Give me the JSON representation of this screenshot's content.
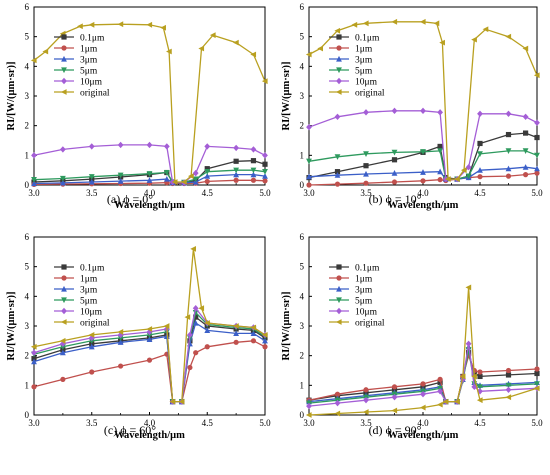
{
  "chart_data": [
    {
      "type": "line",
      "caption": "(a)  ϕ = 0°",
      "xlabel": "Wavelength/μm",
      "ylabel": "RI/[W/(μm·sr)]",
      "xlim": [
        3.0,
        5.0
      ],
      "ylim": [
        0,
        6
      ],
      "xticks": [
        "3.0",
        "3.5",
        "4.0",
        "4.5",
        "5.0"
      ],
      "yticks": [
        "0",
        "1",
        "2",
        "3",
        "4",
        "5",
        "6"
      ],
      "legend": "top-left",
      "series": [
        {
          "name": "0.1μm",
          "x": [
            3.0,
            3.25,
            3.5,
            3.75,
            4.0,
            4.15,
            4.2,
            4.3,
            4.4,
            4.5,
            4.75,
            4.9,
            5.0
          ],
          "y": [
            0.1,
            0.14,
            0.2,
            0.27,
            0.35,
            0.42,
            0.1,
            0.08,
            0.15,
            0.55,
            0.8,
            0.82,
            0.7
          ]
        },
        {
          "name": "1μm",
          "x": [
            3.0,
            3.25,
            3.5,
            3.75,
            4.0,
            4.15,
            4.2,
            4.3,
            4.4,
            4.5,
            4.75,
            4.9,
            5.0
          ],
          "y": [
            0.02,
            0.03,
            0.04,
            0.05,
            0.06,
            0.08,
            0.05,
            0.05,
            0.06,
            0.12,
            0.16,
            0.16,
            0.14
          ]
        },
        {
          "name": "3μm",
          "x": [
            3.0,
            3.25,
            3.5,
            3.75,
            4.0,
            4.15,
            4.2,
            4.3,
            4.4,
            4.5,
            4.75,
            4.9,
            5.0
          ],
          "y": [
            0.05,
            0.07,
            0.1,
            0.13,
            0.16,
            0.2,
            0.08,
            0.07,
            0.1,
            0.3,
            0.35,
            0.35,
            0.3
          ]
        },
        {
          "name": "5μm",
          "x": [
            3.0,
            3.25,
            3.5,
            3.75,
            4.0,
            4.15,
            4.2,
            4.3,
            4.4,
            4.5,
            4.75,
            4.9,
            5.0
          ],
          "y": [
            0.18,
            0.22,
            0.28,
            0.33,
            0.38,
            0.42,
            0.1,
            0.09,
            0.2,
            0.45,
            0.5,
            0.5,
            0.45
          ]
        },
        {
          "name": "10μm",
          "x": [
            3.0,
            3.25,
            3.5,
            3.75,
            4.0,
            4.15,
            4.2,
            4.3,
            4.4,
            4.5,
            4.75,
            4.9,
            5.0
          ],
          "y": [
            1.0,
            1.2,
            1.3,
            1.35,
            1.35,
            1.3,
            0.1,
            0.08,
            0.4,
            1.3,
            1.25,
            1.2,
            1.0
          ]
        },
        {
          "name": "original",
          "x": [
            3.0,
            3.1,
            3.25,
            3.4,
            3.5,
            3.75,
            4.0,
            4.12,
            4.17,
            4.22,
            4.3,
            4.36,
            4.45,
            4.55,
            4.75,
            4.9,
            5.0
          ],
          "y": [
            4.2,
            4.5,
            5.1,
            5.35,
            5.4,
            5.42,
            5.4,
            5.3,
            4.5,
            0.1,
            0.1,
            0.3,
            4.6,
            5.05,
            4.8,
            4.4,
            3.5
          ]
        }
      ]
    },
    {
      "type": "line",
      "caption": "(b)  ϕ = 10°",
      "xlabel": "Wavelength/μm",
      "ylabel": "RI/[W/(μm·sr)]",
      "xlim": [
        3.0,
        5.0
      ],
      "ylim": [
        0,
        6
      ],
      "xticks": [
        "3.0",
        "3.5",
        "4.0",
        "4.5",
        "5.0"
      ],
      "yticks": [
        "0",
        "1",
        "2",
        "3",
        "4",
        "5",
        "6"
      ],
      "legend": "top-left",
      "series": [
        {
          "name": "0.1μm",
          "x": [
            3.0,
            3.25,
            3.5,
            3.75,
            4.0,
            4.15,
            4.2,
            4.3,
            4.4,
            4.5,
            4.75,
            4.9,
            5.0
          ],
          "y": [
            0.25,
            0.45,
            0.65,
            0.85,
            1.1,
            1.3,
            0.25,
            0.2,
            0.3,
            1.4,
            1.7,
            1.75,
            1.6
          ]
        },
        {
          "name": "1μm",
          "x": [
            3.0,
            3.25,
            3.5,
            3.75,
            4.0,
            4.15,
            4.2,
            4.3,
            4.4,
            4.5,
            4.75,
            4.9,
            5.0
          ],
          "y": [
            0.0,
            0.03,
            0.06,
            0.1,
            0.14,
            0.18,
            0.15,
            0.2,
            0.25,
            0.28,
            0.3,
            0.35,
            0.4
          ]
        },
        {
          "name": "3μm",
          "x": [
            3.0,
            3.25,
            3.5,
            3.75,
            4.0,
            4.15,
            4.2,
            4.3,
            4.4,
            4.5,
            4.75,
            4.9,
            5.0
          ],
          "y": [
            0.28,
            0.33,
            0.37,
            0.4,
            0.43,
            0.45,
            0.2,
            0.2,
            0.25,
            0.5,
            0.55,
            0.6,
            0.55
          ]
        },
        {
          "name": "5μm",
          "x": [
            3.0,
            3.25,
            3.5,
            3.75,
            4.0,
            4.15,
            4.2,
            4.3,
            4.4,
            4.5,
            4.75,
            4.9,
            5.0
          ],
          "y": [
            0.8,
            0.95,
            1.05,
            1.1,
            1.12,
            1.15,
            0.2,
            0.2,
            0.3,
            1.05,
            1.15,
            1.15,
            1.0
          ]
        },
        {
          "name": "10μm",
          "x": [
            3.0,
            3.25,
            3.5,
            3.75,
            4.0,
            4.15,
            4.2,
            4.3,
            4.4,
            4.5,
            4.75,
            4.9,
            5.0
          ],
          "y": [
            1.95,
            2.3,
            2.45,
            2.5,
            2.5,
            2.45,
            0.2,
            0.2,
            0.6,
            2.4,
            2.4,
            2.3,
            2.1
          ]
        },
        {
          "name": "original",
          "x": [
            3.0,
            3.1,
            3.25,
            3.4,
            3.5,
            3.75,
            4.0,
            4.12,
            4.17,
            4.22,
            4.3,
            4.36,
            4.45,
            4.55,
            4.75,
            4.9,
            5.0
          ],
          "y": [
            4.4,
            4.6,
            5.2,
            5.4,
            5.45,
            5.5,
            5.5,
            5.45,
            4.8,
            0.2,
            0.2,
            0.5,
            4.9,
            5.25,
            5.0,
            4.6,
            3.7
          ]
        }
      ]
    },
    {
      "type": "line",
      "caption": "(c)  ϕ = 60°",
      "xlabel": "Wavelength/μm",
      "ylabel": "RI/[W/(μm·sr)]",
      "xlim": [
        3.0,
        5.0
      ],
      "ylim": [
        0,
        6
      ],
      "xticks": [
        "3.0",
        "3.5",
        "4.0",
        "4.5",
        "5.0"
      ],
      "yticks": [
        "0",
        "1",
        "2",
        "3",
        "4",
        "5",
        "6"
      ],
      "legend": "top-left",
      "series": [
        {
          "name": "0.1μm",
          "x": [
            3.0,
            3.25,
            3.5,
            3.75,
            4.0,
            4.15,
            4.2,
            4.28,
            4.35,
            4.4,
            4.5,
            4.75,
            4.9,
            5.0
          ],
          "y": [
            1.9,
            2.2,
            2.4,
            2.5,
            2.6,
            2.7,
            0.45,
            0.45,
            2.5,
            3.3,
            3.0,
            2.9,
            2.85,
            2.6
          ]
        },
        {
          "name": "1μm",
          "x": [
            3.0,
            3.25,
            3.5,
            3.75,
            4.0,
            4.15,
            4.2,
            4.28,
            4.35,
            4.4,
            4.5,
            4.75,
            4.9,
            5.0
          ],
          "y": [
            0.95,
            1.2,
            1.45,
            1.65,
            1.85,
            2.05,
            0.45,
            0.45,
            1.6,
            2.1,
            2.3,
            2.45,
            2.5,
            2.3
          ]
        },
        {
          "name": "3μm",
          "x": [
            3.0,
            3.25,
            3.5,
            3.75,
            4.0,
            4.15,
            4.2,
            4.28,
            4.35,
            4.4,
            4.5,
            4.75,
            4.9,
            5.0
          ],
          "y": [
            1.8,
            2.1,
            2.3,
            2.45,
            2.55,
            2.65,
            0.45,
            0.45,
            2.4,
            3.1,
            2.85,
            2.75,
            2.75,
            2.5
          ]
        },
        {
          "name": "5μm",
          "x": [
            3.0,
            3.25,
            3.5,
            3.75,
            4.0,
            4.15,
            4.2,
            4.28,
            4.35,
            4.4,
            4.5,
            4.75,
            4.9,
            5.0
          ],
          "y": [
            2.05,
            2.3,
            2.5,
            2.6,
            2.7,
            2.8,
            0.45,
            0.45,
            2.6,
            3.45,
            3.05,
            2.95,
            2.9,
            2.65
          ]
        },
        {
          "name": "10μm",
          "x": [
            3.0,
            3.25,
            3.5,
            3.75,
            4.0,
            4.15,
            4.2,
            4.28,
            4.35,
            4.4,
            4.5,
            4.75,
            4.9,
            5.0
          ],
          "y": [
            2.1,
            2.4,
            2.6,
            2.7,
            2.8,
            2.9,
            0.45,
            0.45,
            2.7,
            3.6,
            3.1,
            3.0,
            2.95,
            2.7
          ]
        },
        {
          "name": "original",
          "x": [
            3.0,
            3.25,
            3.5,
            3.75,
            4.0,
            4.15,
            4.2,
            4.28,
            4.33,
            4.38,
            4.45,
            4.5,
            4.75,
            4.9,
            5.0
          ],
          "y": [
            2.3,
            2.5,
            2.7,
            2.8,
            2.9,
            3.0,
            0.45,
            0.45,
            3.3,
            5.6,
            3.6,
            3.1,
            3.0,
            2.95,
            2.7
          ]
        }
      ]
    },
    {
      "type": "line",
      "caption": "(d)  ϕ = 90°",
      "xlabel": "Wavelength/μm",
      "ylabel": "RI/[W/(μm·sr)]",
      "xlim": [
        3.0,
        5.0
      ],
      "ylim": [
        0,
        6
      ],
      "xticks": [
        "3.0",
        "3.5",
        "4.0",
        "4.5",
        "5.0"
      ],
      "yticks": [
        "0",
        "1",
        "2",
        "3",
        "4",
        "5",
        "6"
      ],
      "legend": "top-left",
      "series": [
        {
          "name": "0.1μm",
          "x": [
            3.0,
            3.25,
            3.5,
            3.75,
            4.0,
            4.15,
            4.2,
            4.3,
            4.35,
            4.4,
            4.45,
            4.5,
            4.75,
            5.0
          ],
          "y": [
            0.5,
            0.65,
            0.75,
            0.85,
            0.95,
            1.1,
            0.45,
            0.45,
            1.3,
            2.1,
            1.4,
            1.3,
            1.35,
            1.4
          ]
        },
        {
          "name": "1μm",
          "x": [
            3.0,
            3.25,
            3.5,
            3.75,
            4.0,
            4.15,
            4.2,
            4.3,
            4.35,
            4.4,
            4.45,
            4.5,
            4.75,
            5.0
          ],
          "y": [
            0.5,
            0.7,
            0.85,
            0.95,
            1.05,
            1.2,
            0.45,
            0.45,
            1.3,
            2.0,
            1.5,
            1.45,
            1.5,
            1.55
          ]
        },
        {
          "name": "3μm",
          "x": [
            3.0,
            3.25,
            3.5,
            3.75,
            4.0,
            4.15,
            4.2,
            4.3,
            4.35,
            4.4,
            4.45,
            4.5,
            4.75,
            5.0
          ],
          "y": [
            0.45,
            0.55,
            0.65,
            0.75,
            0.85,
            0.95,
            0.45,
            0.45,
            1.2,
            2.3,
            1.1,
            1.0,
            1.05,
            1.1
          ]
        },
        {
          "name": "5μm",
          "x": [
            3.0,
            3.25,
            3.5,
            3.75,
            4.0,
            4.15,
            4.2,
            4.3,
            4.35,
            4.4,
            4.45,
            4.5,
            4.75,
            5.0
          ],
          "y": [
            0.4,
            0.5,
            0.6,
            0.7,
            0.8,
            0.9,
            0.45,
            0.45,
            1.15,
            2.2,
            1.05,
            0.95,
            1.0,
            1.05
          ]
        },
        {
          "name": "10μm",
          "x": [
            3.0,
            3.25,
            3.5,
            3.75,
            4.0,
            4.15,
            4.2,
            4.3,
            4.35,
            4.4,
            4.45,
            4.5,
            4.75,
            5.0
          ],
          "y": [
            0.3,
            0.4,
            0.5,
            0.6,
            0.7,
            0.8,
            0.45,
            0.45,
            1.2,
            2.4,
            0.95,
            0.8,
            0.85,
            0.9
          ]
        },
        {
          "name": "original",
          "x": [
            3.0,
            3.25,
            3.5,
            3.75,
            4.0,
            4.15,
            4.2,
            4.3,
            4.35,
            4.4,
            4.45,
            4.5,
            4.75,
            5.0
          ],
          "y": [
            0.0,
            0.05,
            0.1,
            0.15,
            0.25,
            0.35,
            0.45,
            0.45,
            1.3,
            4.3,
            1.3,
            0.5,
            0.6,
            0.9
          ]
        }
      ]
    }
  ],
  "colors": {
    "0.1μm": "#3a3a3a",
    "1μm": "#c0504d",
    "3μm": "#3b5fc8",
    "5μm": "#2e9a5e",
    "10μm": "#a45ed6",
    "original": "#b9a020"
  },
  "markers": {
    "0.1μm": "square",
    "1μm": "circle",
    "3μm": "triangle-up",
    "5μm": "triangle-down",
    "10μm": "diamond",
    "original": "triangle-left"
  }
}
